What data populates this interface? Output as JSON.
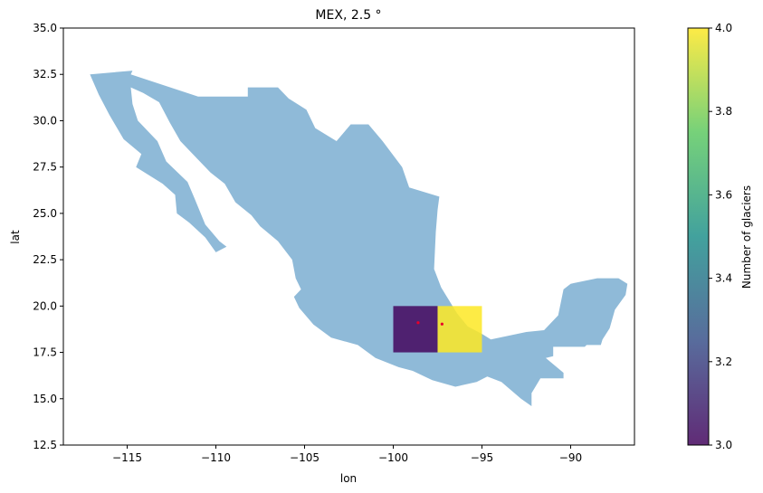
{
  "chart_data": {
    "type": "heatmap",
    "title": "MEX, 2.5 °",
    "xlabel": "lon",
    "ylabel": "lat",
    "xlim": [
      -118.6,
      -86.4
    ],
    "ylim": [
      12.5,
      35.0
    ],
    "xticks": [
      -115,
      -110,
      -105,
      -100,
      -95,
      -90
    ],
    "xtick_labels": [
      "−115",
      "−110",
      "−105",
      "−100",
      "−95",
      "−90"
    ],
    "yticks": [
      12.5,
      15.0,
      17.5,
      20.0,
      22.5,
      25.0,
      27.5,
      30.0,
      32.5,
      35.0
    ],
    "ytick_labels": [
      "12.5",
      "15.0",
      "17.5",
      "20.0",
      "22.5",
      "25.0",
      "27.5",
      "30.0",
      "32.5",
      "35.0"
    ],
    "grid": false,
    "country_fill": "#8fbad8",
    "cells": [
      {
        "lon_min": -100.0,
        "lon_max": -97.5,
        "lat_min": 17.5,
        "lat_max": 20.0,
        "value": 3,
        "color": "#44065e"
      },
      {
        "lon_min": -97.5,
        "lon_max": -95.0,
        "lat_min": 17.5,
        "lat_max": 20.0,
        "value": 4,
        "color": "#fde725"
      }
    ],
    "cell_opacity": 0.85,
    "glaciers": [
      {
        "lon": -98.6,
        "lat": 19.1
      },
      {
        "lon": -97.25,
        "lat": 19.03
      }
    ],
    "glacier_color": "#e8002a",
    "colorbar": {
      "label": "Number of glaciers",
      "min": 3.0,
      "max": 4.0,
      "ticks": [
        3.0,
        3.2,
        3.4,
        3.6,
        3.8,
        4.0
      ],
      "tick_labels": [
        "3.0",
        "3.2",
        "3.4",
        "3.6",
        "3.8",
        "4.0"
      ],
      "colormap": "viridis"
    },
    "outline": [
      [
        -117.1,
        32.5
      ],
      [
        -114.7,
        32.7
      ],
      [
        -114.8,
        32.5
      ],
      [
        -111.0,
        31.3
      ],
      [
        -108.2,
        31.3
      ],
      [
        -108.2,
        31.8
      ],
      [
        -106.5,
        31.8
      ],
      [
        -105.9,
        31.2
      ],
      [
        -104.9,
        30.6
      ],
      [
        -104.4,
        29.6
      ],
      [
        -103.2,
        28.9
      ],
      [
        -102.4,
        29.8
      ],
      [
        -101.4,
        29.8
      ],
      [
        -100.6,
        28.9
      ],
      [
        -99.5,
        27.5
      ],
      [
        -99.1,
        26.4
      ],
      [
        -97.4,
        25.9
      ],
      [
        -97.5,
        25.2
      ],
      [
        -97.6,
        24.0
      ],
      [
        -97.7,
        22.0
      ],
      [
        -97.3,
        21.0
      ],
      [
        -96.4,
        19.6
      ],
      [
        -95.8,
        18.9
      ],
      [
        -95.0,
        18.5
      ],
      [
        -94.5,
        18.2
      ],
      [
        -93.5,
        18.4
      ],
      [
        -92.5,
        18.6
      ],
      [
        -91.5,
        18.7
      ],
      [
        -90.7,
        19.5
      ],
      [
        -90.4,
        20.9
      ],
      [
        -90.0,
        21.2
      ],
      [
        -88.5,
        21.5
      ],
      [
        -87.3,
        21.5
      ],
      [
        -86.8,
        21.2
      ],
      [
        -86.9,
        20.6
      ],
      [
        -87.5,
        19.8
      ],
      [
        -87.8,
        18.8
      ],
      [
        -88.2,
        18.2
      ],
      [
        -88.3,
        17.9
      ],
      [
        -89.1,
        17.9
      ],
      [
        -89.2,
        17.8
      ],
      [
        -90.98,
        17.8
      ],
      [
        -90.98,
        17.3
      ],
      [
        -91.4,
        17.2
      ],
      [
        -90.4,
        16.4
      ],
      [
        -90.4,
        16.1
      ],
      [
        -91.7,
        16.1
      ],
      [
        -92.2,
        15.3
      ],
      [
        -92.2,
        14.6
      ],
      [
        -92.8,
        15.0
      ],
      [
        -93.9,
        15.9
      ],
      [
        -94.7,
        16.2
      ],
      [
        -95.3,
        15.9
      ],
      [
        -96.5,
        15.65
      ],
      [
        -97.8,
        16.0
      ],
      [
        -98.9,
        16.5
      ],
      [
        -99.7,
        16.7
      ],
      [
        -101.0,
        17.2
      ],
      [
        -102.0,
        17.9
      ],
      [
        -103.5,
        18.3
      ],
      [
        -104.5,
        19.0
      ],
      [
        -105.3,
        19.9
      ],
      [
        -105.6,
        20.5
      ],
      [
        -105.2,
        20.9
      ],
      [
        -105.5,
        21.5
      ],
      [
        -105.7,
        22.5
      ],
      [
        -106.5,
        23.5
      ],
      [
        -107.5,
        24.3
      ],
      [
        -108.0,
        24.9
      ],
      [
        -108.9,
        25.6
      ],
      [
        -109.5,
        26.6
      ],
      [
        -110.3,
        27.2
      ],
      [
        -111.0,
        27.9
      ],
      [
        -112.0,
        28.9
      ],
      [
        -112.6,
        29.9
      ],
      [
        -113.2,
        31.0
      ],
      [
        -114.1,
        31.5
      ],
      [
        -114.8,
        31.8
      ],
      [
        -114.7,
        30.9
      ],
      [
        -114.4,
        30.0
      ],
      [
        -113.3,
        28.9
      ],
      [
        -112.8,
        27.8
      ],
      [
        -111.6,
        26.7
      ],
      [
        -111.2,
        25.8
      ],
      [
        -110.6,
        24.4
      ],
      [
        -109.8,
        23.5
      ],
      [
        -109.4,
        23.2
      ],
      [
        -110.0,
        22.9
      ],
      [
        -110.6,
        23.7
      ],
      [
        -111.5,
        24.5
      ],
      [
        -112.2,
        25.0
      ],
      [
        -112.3,
        26.0
      ],
      [
        -113.0,
        26.6
      ],
      [
        -114.5,
        27.5
      ],
      [
        -114.2,
        28.2
      ],
      [
        -115.2,
        29.0
      ],
      [
        -116.0,
        30.3
      ],
      [
        -116.6,
        31.4
      ],
      [
        -117.1,
        32.5
      ]
    ]
  }
}
